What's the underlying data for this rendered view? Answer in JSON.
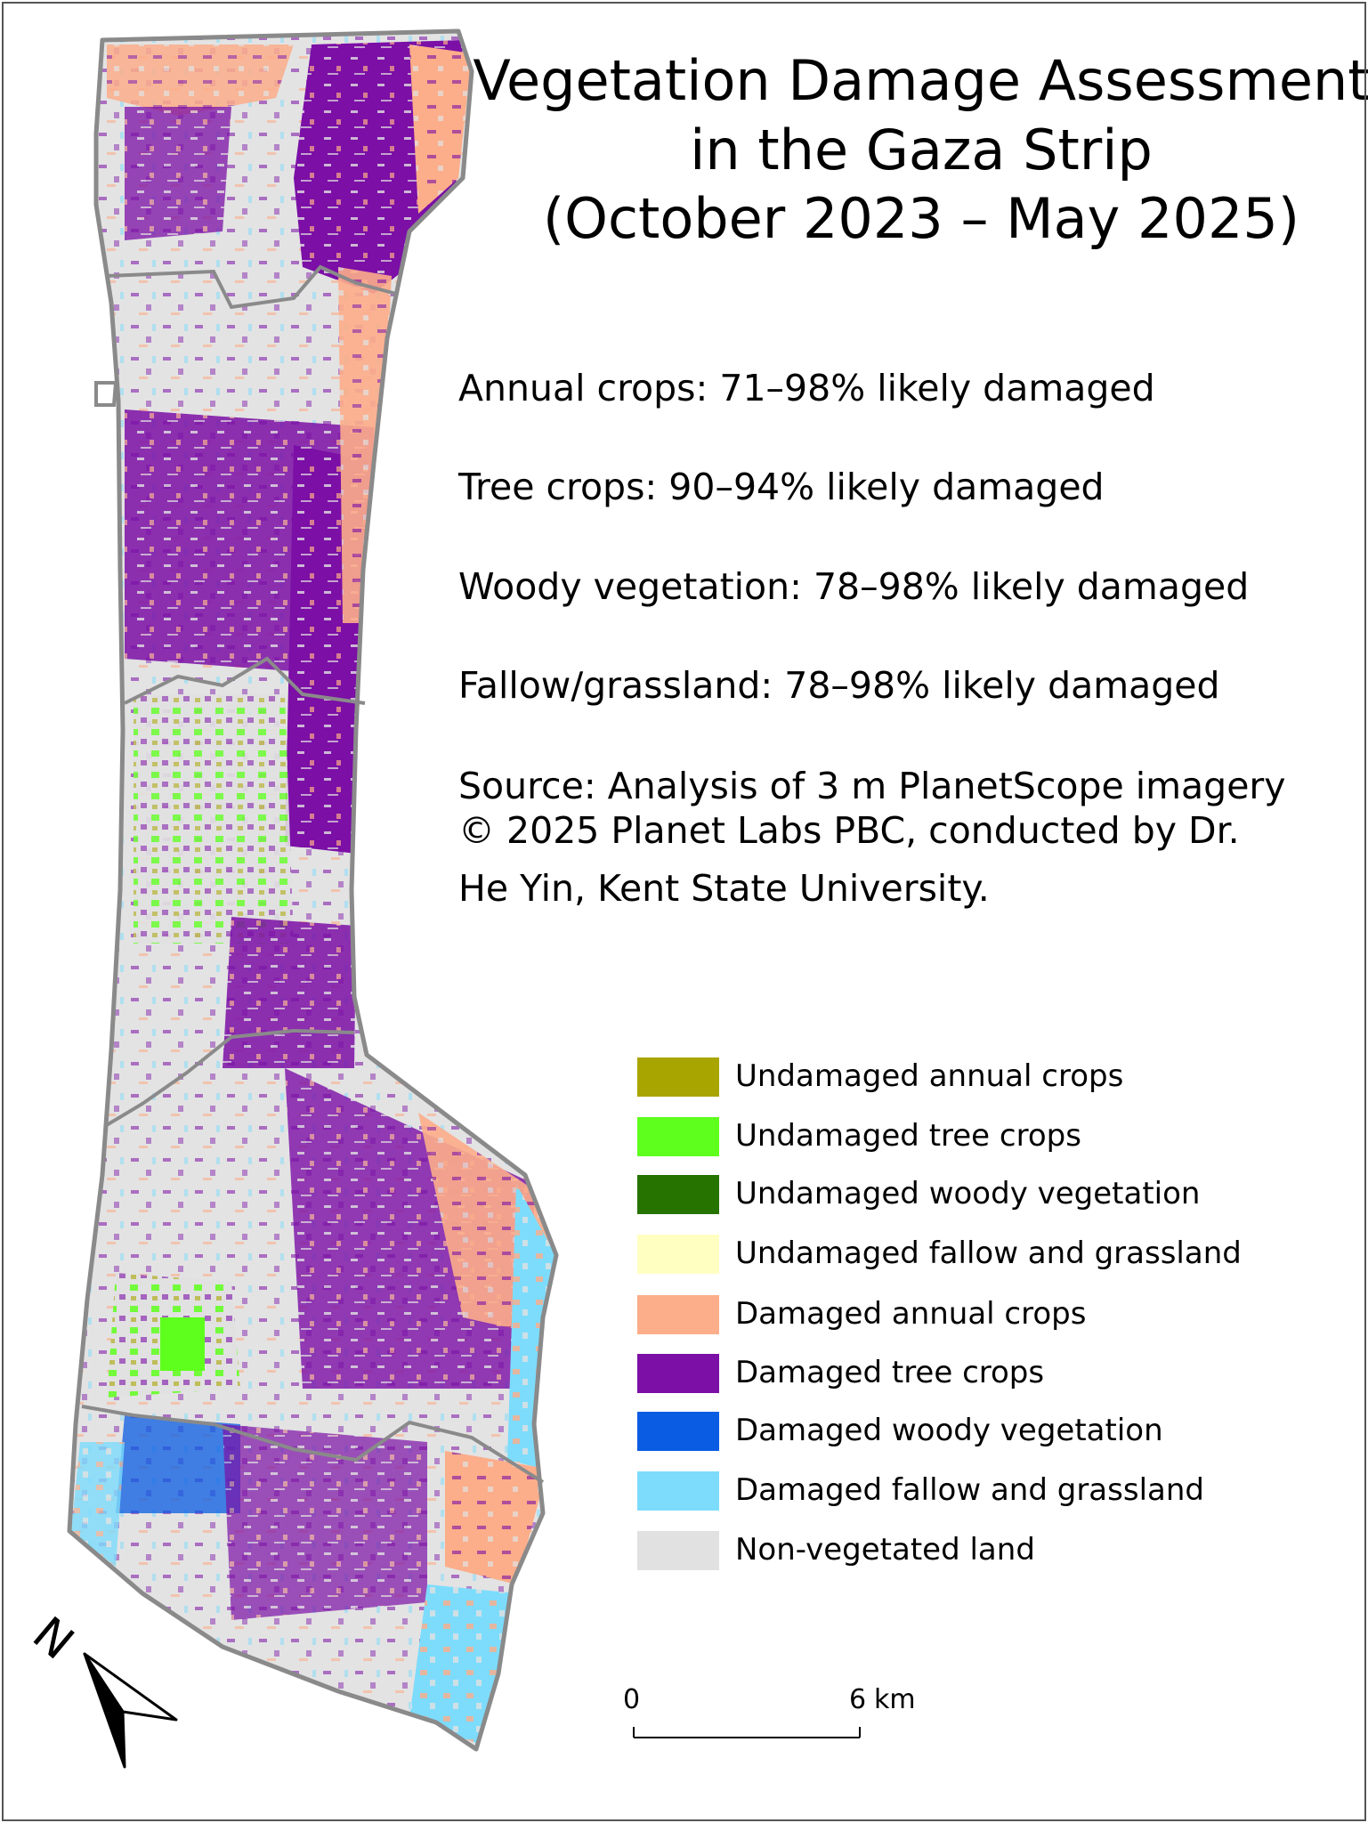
{
  "title": {
    "line1": "Vegetation Damage Assessment",
    "line2": "in the Gaza Strip",
    "line3": "(October 2023 – May 2025)"
  },
  "stats": [
    {
      "text": "Annual crops: 71–98% likely damaged"
    },
    {
      "text": "Tree crops: 90–94% likely damaged"
    },
    {
      "text": "Woody vegetation: 78–98% likely damaged"
    },
    {
      "text": "Fallow/grassland: 78–98% likely damaged"
    }
  ],
  "source": {
    "line1": "Source: Analysis of 3 m PlanetScope imagery",
    "line2": "© 2025 Planet Labs PBC, conducted by Dr.",
    "line3": "He Yin, Kent State University."
  },
  "legend": [
    {
      "label": "Undamaged annual crops",
      "color": "#a9a500"
    },
    {
      "label": "Undamaged tree crops",
      "color": "#5eff1c"
    },
    {
      "label": "Undamaged woody vegetation",
      "color": "#267300"
    },
    {
      "label": "Undamaged fallow and grassland",
      "color": "#ffffc2"
    },
    {
      "label": "Damaged annual crops",
      "color": "#fcad8a"
    },
    {
      "label": "Damaged tree crops",
      "color": "#7b0fa6"
    },
    {
      "label": "Damaged woody vegetation",
      "color": "#0a5ce3"
    },
    {
      "label": "Damaged fallow and grassland",
      "color": "#7ddcfc"
    },
    {
      "label": "Non-vegetated land",
      "color": "#e1e1e1"
    }
  ],
  "scale_bar": {
    "start_label": "0",
    "end_label": "6",
    "unit": "km"
  },
  "north_arrow": {
    "letter": "N",
    "icon": "north-arrow-icon"
  },
  "boundary_color": "#8a8a8a"
}
